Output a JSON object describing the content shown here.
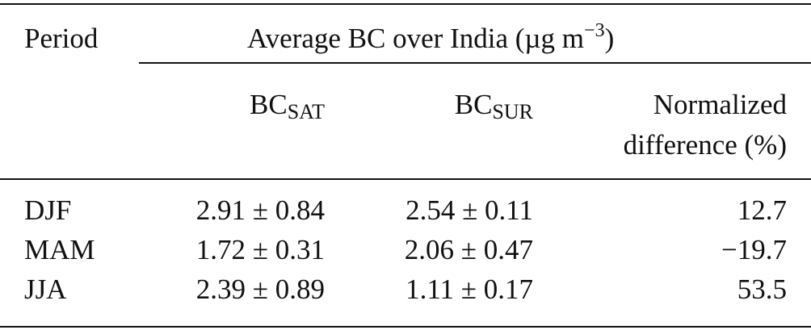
{
  "table": {
    "header": {
      "period": "Period",
      "group": {
        "text": "Average BC over India (µg m",
        "sup": "−3",
        "close": ")"
      },
      "columns": [
        {
          "base": "BC",
          "sub": "SAT"
        },
        {
          "base": "BC",
          "sub": "SUR"
        },
        {
          "lines": [
            "Normalized",
            "difference (%)"
          ]
        }
      ]
    },
    "rows": [
      [
        "DJF",
        "2.91 ± 0.84",
        "2.54 ± 0.11",
        "12.7"
      ],
      [
        "MAM",
        "1.72 ± 0.31",
        "2.06 ± 0.47",
        "−19.7"
      ],
      [
        "JJA",
        "2.39 ± 0.89",
        "1.11 ± 0.17",
        "53.5"
      ]
    ]
  }
}
